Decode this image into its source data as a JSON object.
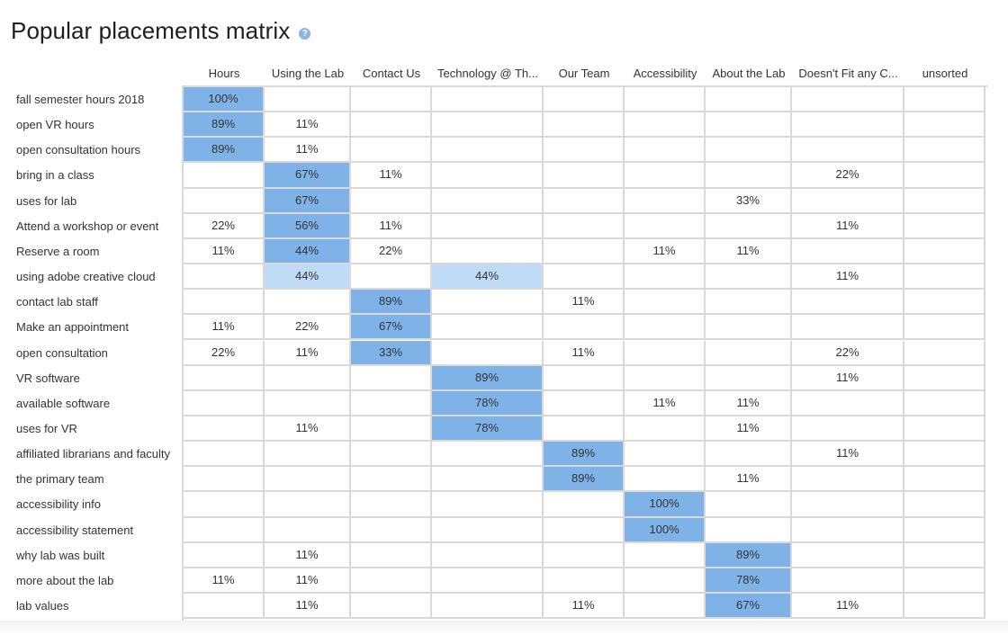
{
  "title": "Popular placements matrix",
  "help_icon": "question-icon",
  "colors": {
    "strong": "#7fb3e8",
    "light": "#c0dbf5",
    "grid": "#d9d9d9"
  },
  "chart_data": {
    "type": "heatmap",
    "columns": [
      "Hours",
      "Using the Lab",
      "Contact Us",
      "Technology @ Th...",
      "Our Team",
      "Accessibility",
      "About the Lab",
      "Doesn't Fit any C...",
      "unsorted"
    ],
    "rows": [
      {
        "label": "fall semester hours 2018",
        "values": [
          "100%",
          "",
          "",
          "",
          "",
          "",
          "",
          "",
          ""
        ],
        "highlight": [
          1,
          0,
          0,
          0,
          0,
          0,
          0,
          0,
          0
        ]
      },
      {
        "label": "open VR hours",
        "values": [
          "89%",
          "11%",
          "",
          "",
          "",
          "",
          "",
          "",
          ""
        ],
        "highlight": [
          1,
          0,
          0,
          0,
          0,
          0,
          0,
          0,
          0
        ]
      },
      {
        "label": "open consultation hours",
        "values": [
          "89%",
          "11%",
          "",
          "",
          "",
          "",
          "",
          "",
          ""
        ],
        "highlight": [
          1,
          0,
          0,
          0,
          0,
          0,
          0,
          0,
          0
        ]
      },
      {
        "label": "bring in a class",
        "values": [
          "",
          "67%",
          "11%",
          "",
          "",
          "",
          "",
          "22%",
          ""
        ],
        "highlight": [
          0,
          1,
          0,
          0,
          0,
          0,
          0,
          0,
          0
        ]
      },
      {
        "label": "uses for lab",
        "values": [
          "",
          "67%",
          "",
          "",
          "",
          "",
          "33%",
          "",
          ""
        ],
        "highlight": [
          0,
          1,
          0,
          0,
          0,
          0,
          0,
          0,
          0
        ]
      },
      {
        "label": "Attend a workshop or event",
        "values": [
          "22%",
          "56%",
          "11%",
          "",
          "",
          "",
          "",
          "11%",
          ""
        ],
        "highlight": [
          0,
          1,
          0,
          0,
          0,
          0,
          0,
          0,
          0
        ]
      },
      {
        "label": "Reserve a room",
        "values": [
          "11%",
          "44%",
          "22%",
          "",
          "",
          "11%",
          "11%",
          "",
          ""
        ],
        "highlight": [
          0,
          1,
          0,
          0,
          0,
          0,
          0,
          0,
          0
        ]
      },
      {
        "label": "using adobe creative cloud",
        "values": [
          "",
          "44%",
          "",
          "44%",
          "",
          "",
          "",
          "11%",
          ""
        ],
        "highlight": [
          0,
          2,
          0,
          2,
          0,
          0,
          0,
          0,
          0
        ]
      },
      {
        "label": "contact lab staff",
        "values": [
          "",
          "",
          "89%",
          "",
          "11%",
          "",
          "",
          "",
          ""
        ],
        "highlight": [
          0,
          0,
          1,
          0,
          0,
          0,
          0,
          0,
          0
        ]
      },
      {
        "label": "Make an appointment",
        "values": [
          "11%",
          "22%",
          "67%",
          "",
          "",
          "",
          "",
          "",
          ""
        ],
        "highlight": [
          0,
          0,
          1,
          0,
          0,
          0,
          0,
          0,
          0
        ]
      },
      {
        "label": "open consultation",
        "values": [
          "22%",
          "11%",
          "33%",
          "",
          "11%",
          "",
          "",
          "22%",
          ""
        ],
        "highlight": [
          0,
          0,
          1,
          0,
          0,
          0,
          0,
          0,
          0
        ]
      },
      {
        "label": "VR software",
        "values": [
          "",
          "",
          "",
          "89%",
          "",
          "",
          "",
          "11%",
          ""
        ],
        "highlight": [
          0,
          0,
          0,
          1,
          0,
          0,
          0,
          0,
          0
        ]
      },
      {
        "label": "available software",
        "values": [
          "",
          "",
          "",
          "78%",
          "",
          "11%",
          "11%",
          "",
          ""
        ],
        "highlight": [
          0,
          0,
          0,
          1,
          0,
          0,
          0,
          0,
          0
        ]
      },
      {
        "label": "uses for VR",
        "values": [
          "",
          "11%",
          "",
          "78%",
          "",
          "",
          "11%",
          "",
          ""
        ],
        "highlight": [
          0,
          0,
          0,
          1,
          0,
          0,
          0,
          0,
          0
        ]
      },
      {
        "label": "affiliated librarians and faculty",
        "values": [
          "",
          "",
          "",
          "",
          "89%",
          "",
          "",
          "11%",
          ""
        ],
        "highlight": [
          0,
          0,
          0,
          0,
          1,
          0,
          0,
          0,
          0
        ]
      },
      {
        "label": "the primary team",
        "values": [
          "",
          "",
          "",
          "",
          "89%",
          "",
          "11%",
          "",
          ""
        ],
        "highlight": [
          0,
          0,
          0,
          0,
          1,
          0,
          0,
          0,
          0
        ]
      },
      {
        "label": "accessibility info",
        "values": [
          "",
          "",
          "",
          "",
          "",
          "100%",
          "",
          "",
          ""
        ],
        "highlight": [
          0,
          0,
          0,
          0,
          0,
          1,
          0,
          0,
          0
        ]
      },
      {
        "label": "accessibility statement",
        "values": [
          "",
          "",
          "",
          "",
          "",
          "100%",
          "",
          "",
          ""
        ],
        "highlight": [
          0,
          0,
          0,
          0,
          0,
          1,
          0,
          0,
          0
        ]
      },
      {
        "label": "why lab was built",
        "values": [
          "",
          "11%",
          "",
          "",
          "",
          "",
          "89%",
          "",
          ""
        ],
        "highlight": [
          0,
          0,
          0,
          0,
          0,
          0,
          1,
          0,
          0
        ]
      },
      {
        "label": "more about the lab",
        "values": [
          "11%",
          "11%",
          "",
          "",
          "",
          "",
          "78%",
          "",
          ""
        ],
        "highlight": [
          0,
          0,
          0,
          0,
          0,
          0,
          1,
          0,
          0
        ]
      },
      {
        "label": "lab values",
        "values": [
          "",
          "11%",
          "",
          "",
          "11%",
          "",
          "67%",
          "11%",
          ""
        ],
        "highlight": [
          0,
          0,
          0,
          0,
          0,
          0,
          1,
          0,
          0
        ]
      }
    ]
  }
}
